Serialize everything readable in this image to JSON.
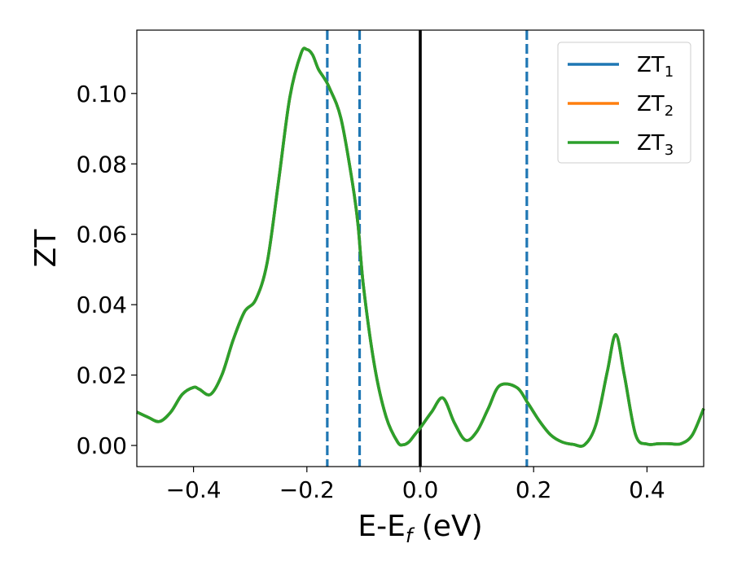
{
  "chart_data": {
    "type": "line",
    "xlabel": "E-E",
    "xlabel_subscript": "f",
    "xlabel_unit": " (eV)",
    "ylabel": "ZT",
    "xlim": [
      -0.5,
      0.5
    ],
    "ylim": [
      -0.006,
      0.118
    ],
    "xticks": [
      -0.4,
      -0.2,
      0.0,
      0.2,
      0.4
    ],
    "xtick_labels": [
      "−0.4",
      "−0.2",
      "0.0",
      "0.2",
      "0.4"
    ],
    "yticks": [
      0.0,
      0.02,
      0.04,
      0.06,
      0.08,
      0.1
    ],
    "ytick_labels": [
      "0.00",
      "0.02",
      "0.04",
      "0.06",
      "0.08",
      "0.10"
    ],
    "legend_position": "top-right",
    "series": [
      {
        "name": "ZT",
        "name_subscript": "1",
        "color": "#1f77b4",
        "x": [
          -0.5,
          -0.48,
          -0.46,
          -0.44,
          -0.42,
          -0.4,
          -0.39,
          -0.37,
          -0.35,
          -0.33,
          -0.31,
          -0.29,
          -0.27,
          -0.25,
          -0.23,
          -0.21,
          -0.2,
          -0.19,
          -0.18,
          -0.17,
          -0.16,
          -0.14,
          -0.12,
          -0.11,
          -0.1,
          -0.08,
          -0.06,
          -0.04,
          -0.03,
          -0.02,
          -0.01,
          0.0,
          0.02,
          0.04,
          0.06,
          0.08,
          0.1,
          0.12,
          0.14,
          0.17,
          0.19,
          0.21,
          0.23,
          0.25,
          0.27,
          0.29,
          0.31,
          0.33,
          0.345,
          0.36,
          0.38,
          0.4,
          0.42,
          0.44,
          0.46,
          0.48,
          0.5
        ],
        "y": [
          0.0095,
          0.008,
          0.0068,
          0.0095,
          0.0145,
          0.0165,
          0.016,
          0.0145,
          0.02,
          0.03,
          0.038,
          0.0415,
          0.052,
          0.075,
          0.099,
          0.1115,
          0.1125,
          0.111,
          0.107,
          0.1045,
          0.1015,
          0.093,
          0.075,
          0.063,
          0.045,
          0.022,
          0.008,
          0.001,
          0.0002,
          0.001,
          0.003,
          0.005,
          0.0095,
          0.0135,
          0.0065,
          0.0015,
          0.004,
          0.0105,
          0.017,
          0.0165,
          0.012,
          0.007,
          0.003,
          0.001,
          0.0003,
          0.0002,
          0.006,
          0.021,
          0.0315,
          0.02,
          0.003,
          0.0004,
          0.0005,
          0.0005,
          0.0005,
          0.003,
          0.0105
        ]
      },
      {
        "name": "ZT",
        "name_subscript": "2",
        "color": "#ff7f0e",
        "x": [
          -0.5,
          -0.48,
          -0.46,
          -0.44,
          -0.42,
          -0.4,
          -0.39,
          -0.37,
          -0.35,
          -0.33,
          -0.31,
          -0.29,
          -0.27,
          -0.25,
          -0.23,
          -0.21,
          -0.2,
          -0.19,
          -0.18,
          -0.17,
          -0.16,
          -0.14,
          -0.12,
          -0.11,
          -0.1,
          -0.08,
          -0.06,
          -0.04,
          -0.03,
          -0.02,
          -0.01,
          0.0,
          0.02,
          0.04,
          0.06,
          0.08,
          0.1,
          0.12,
          0.14,
          0.17,
          0.19,
          0.21,
          0.23,
          0.25,
          0.27,
          0.29,
          0.31,
          0.33,
          0.345,
          0.36,
          0.38,
          0.4,
          0.42,
          0.44,
          0.46,
          0.48,
          0.5
        ],
        "y": [
          0.0095,
          0.008,
          0.0068,
          0.0095,
          0.0145,
          0.0165,
          0.016,
          0.0145,
          0.02,
          0.03,
          0.038,
          0.0415,
          0.052,
          0.075,
          0.099,
          0.1115,
          0.1125,
          0.111,
          0.107,
          0.1045,
          0.1015,
          0.093,
          0.075,
          0.063,
          0.045,
          0.022,
          0.008,
          0.001,
          0.0002,
          0.001,
          0.003,
          0.005,
          0.0095,
          0.0135,
          0.0065,
          0.0015,
          0.004,
          0.0105,
          0.017,
          0.0165,
          0.012,
          0.007,
          0.003,
          0.001,
          0.0003,
          0.0002,
          0.006,
          0.021,
          0.0315,
          0.02,
          0.003,
          0.0004,
          0.0005,
          0.0005,
          0.0005,
          0.003,
          0.0105
        ]
      },
      {
        "name": "ZT",
        "name_subscript": "3",
        "color": "#2ca02c",
        "x": [
          -0.5,
          -0.48,
          -0.46,
          -0.44,
          -0.42,
          -0.4,
          -0.39,
          -0.37,
          -0.35,
          -0.33,
          -0.31,
          -0.29,
          -0.27,
          -0.25,
          -0.23,
          -0.21,
          -0.2,
          -0.19,
          -0.18,
          -0.17,
          -0.16,
          -0.14,
          -0.12,
          -0.11,
          -0.1,
          -0.08,
          -0.06,
          -0.04,
          -0.03,
          -0.02,
          -0.01,
          0.0,
          0.02,
          0.04,
          0.06,
          0.08,
          0.1,
          0.12,
          0.14,
          0.17,
          0.19,
          0.21,
          0.23,
          0.25,
          0.27,
          0.29,
          0.31,
          0.33,
          0.345,
          0.36,
          0.38,
          0.4,
          0.42,
          0.44,
          0.46,
          0.48,
          0.5
        ],
        "y": [
          0.0095,
          0.008,
          0.0068,
          0.0095,
          0.0145,
          0.0165,
          0.016,
          0.0145,
          0.02,
          0.03,
          0.038,
          0.0415,
          0.052,
          0.075,
          0.099,
          0.1115,
          0.1125,
          0.111,
          0.107,
          0.1045,
          0.1015,
          0.093,
          0.075,
          0.063,
          0.045,
          0.022,
          0.008,
          0.001,
          0.0002,
          0.001,
          0.003,
          0.005,
          0.0095,
          0.0135,
          0.0065,
          0.0015,
          0.004,
          0.0105,
          0.017,
          0.0165,
          0.012,
          0.007,
          0.003,
          0.001,
          0.0003,
          0.0002,
          0.006,
          0.021,
          0.0315,
          0.02,
          0.003,
          0.0004,
          0.0005,
          0.0005,
          0.0005,
          0.003,
          0.0105
        ]
      }
    ],
    "reference_lines": [
      {
        "x": 0.0,
        "style": "solid",
        "color": "#000000"
      },
      {
        "x": -0.164,
        "style": "dashed",
        "color": "#1f77b4"
      },
      {
        "x": -0.107,
        "style": "dashed",
        "color": "#1f77b4"
      },
      {
        "x": 0.188,
        "style": "dashed",
        "color": "#1f77b4"
      }
    ]
  }
}
